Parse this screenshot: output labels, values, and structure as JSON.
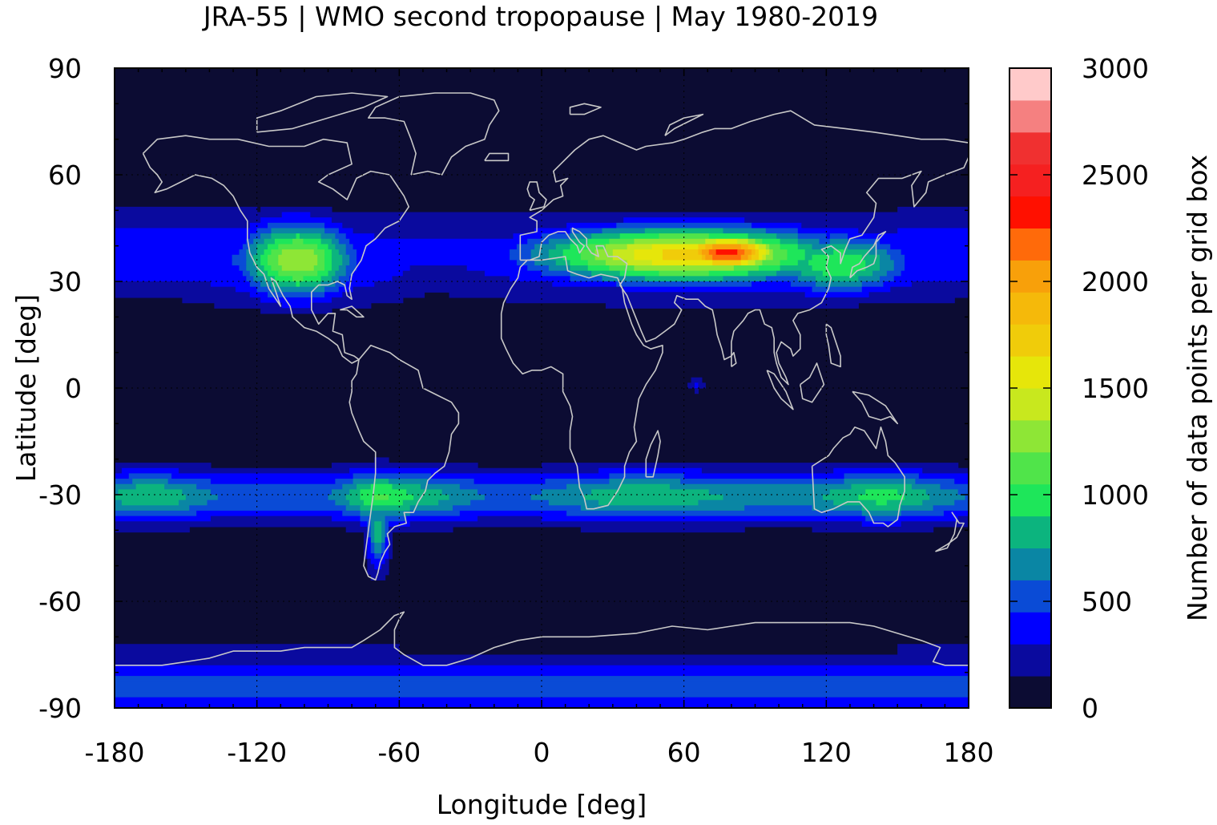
{
  "chart_data": {
    "type": "heatmap",
    "title": "JRA-55 | WMO second tropopause | May 1980-2019",
    "xlabel": "Longitude [deg]",
    "ylabel": "Latitude [deg]",
    "colorbar_label": "Number of data points per grid box",
    "xlim": [
      -180,
      180
    ],
    "ylim": [
      -90,
      90
    ],
    "x_ticks": [
      -180,
      -120,
      -60,
      0,
      60,
      120,
      180
    ],
    "x_tick_labels": [
      "-180",
      "-120",
      "-60",
      "0",
      "60",
      "120",
      "180"
    ],
    "y_ticks": [
      90,
      60,
      30,
      0,
      -30,
      -60,
      -90
    ],
    "y_tick_labels": [
      "90",
      "60",
      "30",
      "0",
      "-30",
      "-60",
      "-90"
    ],
    "colorbar_range": [
      0,
      3000
    ],
    "colorbar_ticks": [
      3000,
      2500,
      2000,
      1500,
      1000,
      500,
      0
    ],
    "colorbar_tick_labels": [
      "3000",
      "2500",
      "2000",
      "1500",
      "1000",
      "500",
      "0"
    ],
    "color_levels": [
      {
        "from": 0,
        "to": 150,
        "color": "#0c0c33"
      },
      {
        "from": 150,
        "to": 300,
        "color": "#0a0a9e"
      },
      {
        "from": 300,
        "to": 450,
        "color": "#0000ff"
      },
      {
        "from": 450,
        "to": 600,
        "color": "#0a4bd6"
      },
      {
        "from": 600,
        "to": 750,
        "color": "#0a86a4"
      },
      {
        "from": 750,
        "to": 900,
        "color": "#0cb47e"
      },
      {
        "from": 900,
        "to": 1050,
        "color": "#1ee65a"
      },
      {
        "from": 1050,
        "to": 1200,
        "color": "#50e44a"
      },
      {
        "from": 1200,
        "to": 1350,
        "color": "#8ee636"
      },
      {
        "from": 1350,
        "to": 1500,
        "color": "#c8e81e"
      },
      {
        "from": 1500,
        "to": 1650,
        "color": "#e6e60a"
      },
      {
        "from": 1650,
        "to": 1800,
        "color": "#f0cc0a"
      },
      {
        "from": 1800,
        "to": 1950,
        "color": "#f5b90a"
      },
      {
        "from": 1950,
        "to": 2100,
        "color": "#f8a00a"
      },
      {
        "from": 2100,
        "to": 2250,
        "color": "#ff6a0a"
      },
      {
        "from": 2250,
        "to": 2400,
        "color": "#ff1000"
      },
      {
        "from": 2400,
        "to": 2550,
        "color": "#f52020"
      },
      {
        "from": 2550,
        "to": 2700,
        "color": "#f03030"
      },
      {
        "from": 2700,
        "to": 2850,
        "color": "#f58080"
      },
      {
        "from": 2850,
        "to": 3000,
        "color": "#ffcaca"
      }
    ],
    "features": [
      {
        "name": "southern-hemisphere-band",
        "lat": -30,
        "lon_range": [
          -180,
          180
        ],
        "peak_value": 1100
      },
      {
        "name": "southern-andes-maximum",
        "lat": -32,
        "lon": -70,
        "peak_value": 1200
      },
      {
        "name": "north-america-maximum",
        "lat": 36,
        "lon": -103,
        "peak_value": 1350
      },
      {
        "name": "asian-maximum",
        "lat": 38,
        "lon": 75,
        "peak_value": 2350
      },
      {
        "name": "antarctic-band",
        "lat": -82,
        "lon_range": [
          -180,
          180
        ],
        "peak_value": 500
      }
    ],
    "colors": {
      "background": "#0c0c33",
      "coastline": "#c8c8c8",
      "grid": "#000000"
    },
    "grid": true
  }
}
